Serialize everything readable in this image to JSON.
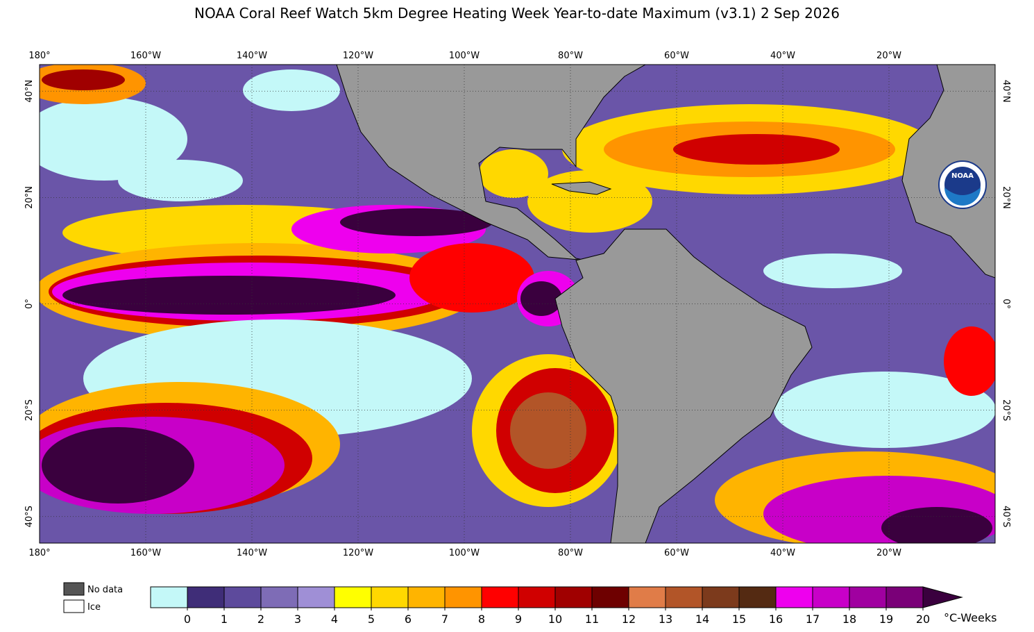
{
  "title": "NOAA Coral Reef Watch 5km Degree Heating Week Year-to-date Maximum  (v3.1)   2 Sep 2026",
  "map": {
    "xlim": [
      -180,
      0
    ],
    "ylim": [
      -45,
      45
    ],
    "xticks": [
      {
        "value": -180,
        "label": "180°"
      },
      {
        "value": -160,
        "label": "160°W"
      },
      {
        "value": -140,
        "label": "140°W"
      },
      {
        "value": -120,
        "label": "120°W"
      },
      {
        "value": -100,
        "label": "100°W"
      },
      {
        "value": -80,
        "label": "80°W"
      },
      {
        "value": -60,
        "label": "60°W"
      },
      {
        "value": -40,
        "label": "40°W"
      },
      {
        "value": -20,
        "label": "20°W"
      }
    ],
    "yticks": [
      {
        "value": 40,
        "label": "40°N"
      },
      {
        "value": 20,
        "label": "20°N"
      },
      {
        "value": 0,
        "label": "0°"
      },
      {
        "value": -20,
        "label": "20°S"
      },
      {
        "value": -40,
        "label": "40°S"
      }
    ],
    "grid": true,
    "logo": "NOAA"
  },
  "legend": [
    {
      "label": "No data",
      "color": "#555555"
    },
    {
      "label": "Ice",
      "color": "#ffffff"
    }
  ],
  "colorbar": {
    "ticks": [
      0,
      1,
      2,
      3,
      4,
      5,
      6,
      7,
      8,
      9,
      10,
      11,
      12,
      13,
      14,
      15,
      16,
      17,
      18,
      19,
      20
    ],
    "colors": [
      "#c4f8f8",
      "#3f2d78",
      "#5d4a9c",
      "#7e6cb6",
      "#9f8fd6",
      "#ffff00",
      "#ffd800",
      "#ffb400",
      "#ff9400",
      "#ff0000",
      "#d00000",
      "#a00000",
      "#6e0000",
      "#e07c48",
      "#b25528",
      "#7c3a1c",
      "#542a12",
      "#ee00ee",
      "#c800c8",
      "#a000a0",
      "#7a0078"
    ],
    "extend_color": "#3a003e",
    "unit": "°C-Weeks"
  }
}
